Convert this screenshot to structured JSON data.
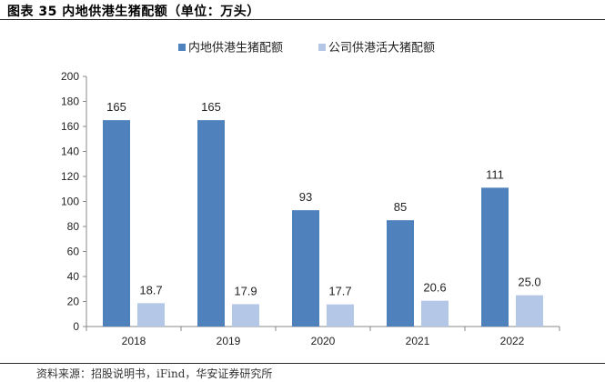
{
  "figure": {
    "title": "图表 35 内地供港生猪配额（单位：万头）",
    "source": "资料来源：招股说明书，iFind，华安证券研究所"
  },
  "chart_data": {
    "type": "bar",
    "title": "",
    "xlabel": "",
    "ylabel": "",
    "categories": [
      "2018",
      "2019",
      "2020",
      "2021",
      "2022"
    ],
    "series": [
      {
        "name": "内地供港生猪配额",
        "values": [
          165,
          165,
          93,
          85,
          111
        ],
        "labels": [
          "165",
          "165",
          "93",
          "85",
          "111"
        ],
        "color": "#4f81bd"
      },
      {
        "name": "公司供港活大猪配额",
        "values": [
          18.7,
          17.9,
          17.7,
          20.6,
          25.0
        ],
        "labels": [
          "18.7",
          "17.9",
          "17.7",
          "20.6",
          "25.0"
        ],
        "color": "#b4c7e7"
      }
    ],
    "ylim": [
      0,
      200
    ],
    "yticks": [
      "0",
      "20",
      "40",
      "60",
      "80",
      "100",
      "120",
      "140",
      "160",
      "180",
      "200"
    ],
    "grid": false,
    "legend": "top-center"
  }
}
